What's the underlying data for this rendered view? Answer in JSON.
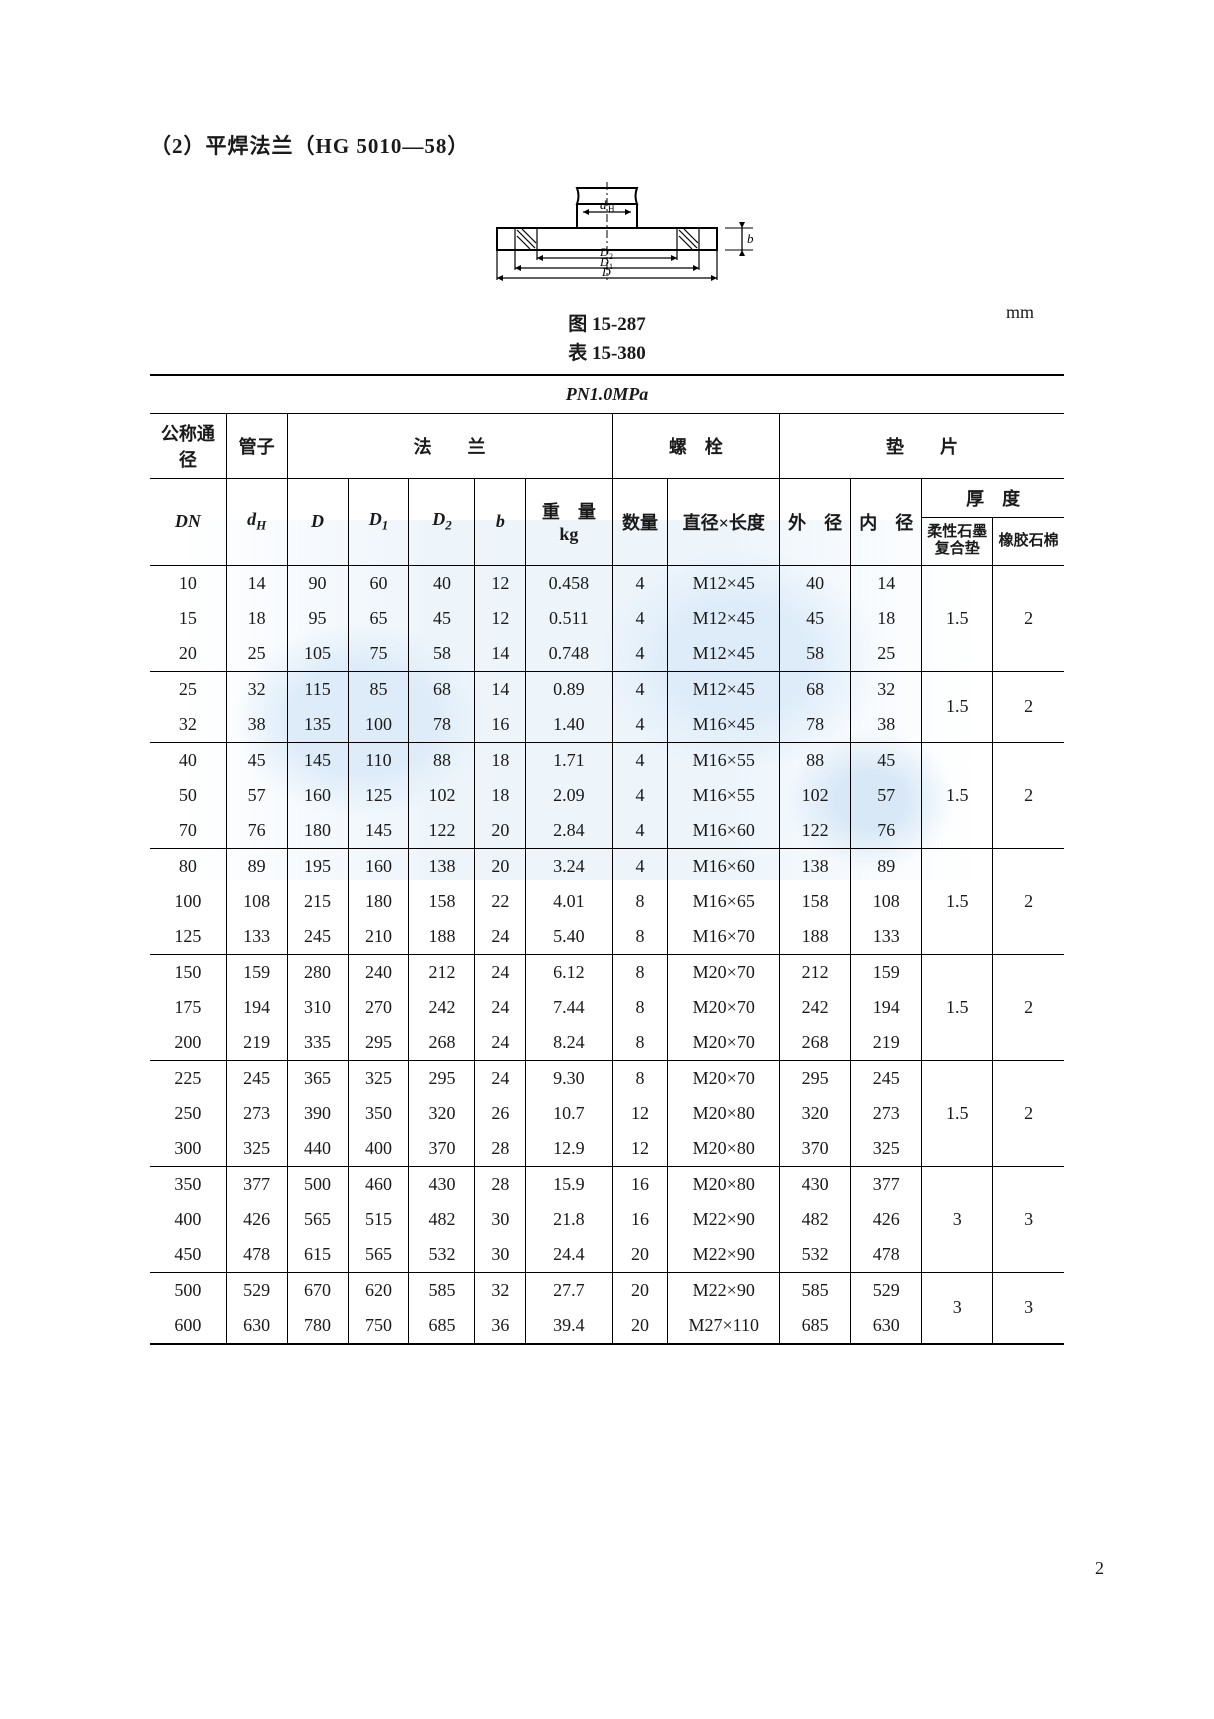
{
  "title_line": "（2）平焊法兰（HG 5010—58）",
  "fig_caption": "图 15-287",
  "table_caption": "表 15-380",
  "unit_label": "mm",
  "pn_label": "PN1.0MPa",
  "page_number": "2",
  "headers": {
    "dn_group": "公称通径",
    "pipe": "管子",
    "flange_group": "法　　兰",
    "bolt_group": "螺　栓",
    "gasket_group": "垫　　片",
    "DN": "DN",
    "dH": "d",
    "dH_sub": "H",
    "D": "D",
    "D1": "D",
    "D1_sub": "1",
    "D2": "D",
    "D2_sub": "2",
    "b": "b",
    "weight": "重　量",
    "weight_unit": "kg",
    "qty": "数量",
    "dia_len": "直径×长度",
    "outer": "外　径",
    "inner": "内　径",
    "thick_group": "厚　度",
    "thick_a": "柔性石墨复合垫",
    "thick_b": "橡胶石棉"
  },
  "groups": [
    {
      "thick_a": "1.5",
      "thick_b": "2",
      "rows": [
        [
          "10",
          "14",
          "90",
          "60",
          "40",
          "12",
          "0.458",
          "4",
          "M12×45",
          "40",
          "14"
        ],
        [
          "15",
          "18",
          "95",
          "65",
          "45",
          "12",
          "0.511",
          "4",
          "M12×45",
          "45",
          "18"
        ],
        [
          "20",
          "25",
          "105",
          "75",
          "58",
          "14",
          "0.748",
          "4",
          "M12×45",
          "58",
          "25"
        ]
      ]
    },
    {
      "thick_a": "1.5",
      "thick_b": "2",
      "rows": [
        [
          "25",
          "32",
          "115",
          "85",
          "68",
          "14",
          "0.89",
          "4",
          "M12×45",
          "68",
          "32"
        ],
        [
          "32",
          "38",
          "135",
          "100",
          "78",
          "16",
          "1.40",
          "4",
          "M16×45",
          "78",
          "38"
        ]
      ]
    },
    {
      "thick_a": "1.5",
      "thick_b": "2",
      "rows": [
        [
          "40",
          "45",
          "145",
          "110",
          "88",
          "18",
          "1.71",
          "4",
          "M16×55",
          "88",
          "45"
        ],
        [
          "50",
          "57",
          "160",
          "125",
          "102",
          "18",
          "2.09",
          "4",
          "M16×55",
          "102",
          "57"
        ],
        [
          "70",
          "76",
          "180",
          "145",
          "122",
          "20",
          "2.84",
          "4",
          "M16×60",
          "122",
          "76"
        ]
      ]
    },
    {
      "thick_a": "1.5",
      "thick_b": "2",
      "rows": [
        [
          "80",
          "89",
          "195",
          "160",
          "138",
          "20",
          "3.24",
          "4",
          "M16×60",
          "138",
          "89"
        ],
        [
          "100",
          "108",
          "215",
          "180",
          "158",
          "22",
          "4.01",
          "8",
          "M16×65",
          "158",
          "108"
        ],
        [
          "125",
          "133",
          "245",
          "210",
          "188",
          "24",
          "5.40",
          "8",
          "M16×70",
          "188",
          "133"
        ]
      ]
    },
    {
      "thick_a": "1.5",
      "thick_b": "2",
      "rows": [
        [
          "150",
          "159",
          "280",
          "240",
          "212",
          "24",
          "6.12",
          "8",
          "M20×70",
          "212",
          "159"
        ],
        [
          "175",
          "194",
          "310",
          "270",
          "242",
          "24",
          "7.44",
          "8",
          "M20×70",
          "242",
          "194"
        ],
        [
          "200",
          "219",
          "335",
          "295",
          "268",
          "24",
          "8.24",
          "8",
          "M20×70",
          "268",
          "219"
        ]
      ]
    },
    {
      "thick_a": "1.5",
      "thick_b": "2",
      "rows": [
        [
          "225",
          "245",
          "365",
          "325",
          "295",
          "24",
          "9.30",
          "8",
          "M20×70",
          "295",
          "245"
        ],
        [
          "250",
          "273",
          "390",
          "350",
          "320",
          "26",
          "10.7",
          "12",
          "M20×80",
          "320",
          "273"
        ],
        [
          "300",
          "325",
          "440",
          "400",
          "370",
          "28",
          "12.9",
          "12",
          "M20×80",
          "370",
          "325"
        ]
      ]
    },
    {
      "thick_a": "3",
      "thick_b": "3",
      "rows": [
        [
          "350",
          "377",
          "500",
          "460",
          "430",
          "28",
          "15.9",
          "16",
          "M20×80",
          "430",
          "377"
        ],
        [
          "400",
          "426",
          "565",
          "515",
          "482",
          "30",
          "21.8",
          "16",
          "M22×90",
          "482",
          "426"
        ],
        [
          "450",
          "478",
          "615",
          "565",
          "532",
          "30",
          "24.4",
          "20",
          "M22×90",
          "532",
          "478"
        ]
      ]
    },
    {
      "thick_a": "3",
      "thick_b": "3",
      "rows": [
        [
          "500",
          "529",
          "670",
          "620",
          "585",
          "32",
          "27.7",
          "20",
          "M22×90",
          "585",
          "529"
        ],
        [
          "600",
          "630",
          "780",
          "750",
          "685",
          "36",
          "39.4",
          "20",
          "M27×110",
          "685",
          "630"
        ]
      ]
    }
  ],
  "style": {
    "text_color": "#1a1a1a",
    "rule_color": "#000000",
    "bg": "#ffffff",
    "watermark_color": "#7eb6e8",
    "font_size_body": 18,
    "font_size_title": 21
  }
}
